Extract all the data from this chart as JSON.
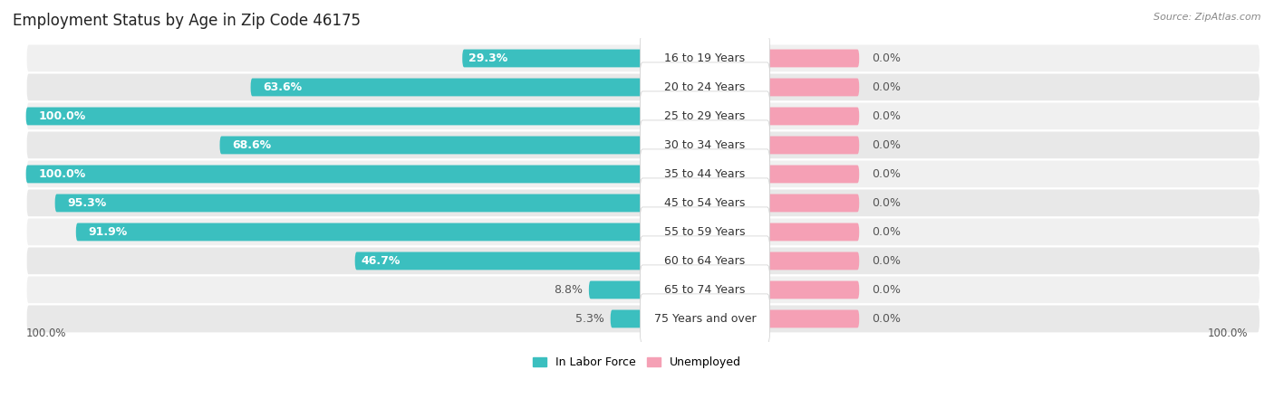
{
  "title": "Employment Status by Age in Zip Code 46175",
  "source": "Source: ZipAtlas.com",
  "categories": [
    "16 to 19 Years",
    "20 to 24 Years",
    "25 to 29 Years",
    "30 to 34 Years",
    "35 to 44 Years",
    "45 to 54 Years",
    "55 to 59 Years",
    "60 to 64 Years",
    "65 to 74 Years",
    "75 Years and over"
  ],
  "labor_force": [
    29.3,
    63.6,
    100.0,
    68.6,
    100.0,
    95.3,
    91.9,
    46.7,
    8.8,
    5.3
  ],
  "unemployed": [
    0.0,
    0.0,
    0.0,
    0.0,
    0.0,
    0.0,
    0.0,
    0.0,
    0.0,
    0.0
  ],
  "labor_force_color": "#3bbfbf",
  "unemployed_color": "#f5a0b5",
  "row_bg_even": "#f0f0f0",
  "row_bg_odd": "#e8e8e8",
  "max_value": 100.0,
  "left_axis_label": "100.0%",
  "right_axis_label": "100.0%",
  "legend_labor": "In Labor Force",
  "legend_unemployed": "Unemployed",
  "title_fontsize": 12,
  "source_fontsize": 8,
  "label_fontsize": 9,
  "cat_fontsize": 9,
  "axis_label_fontsize": 8.5,
  "unemployed_fixed_pct": 15
}
